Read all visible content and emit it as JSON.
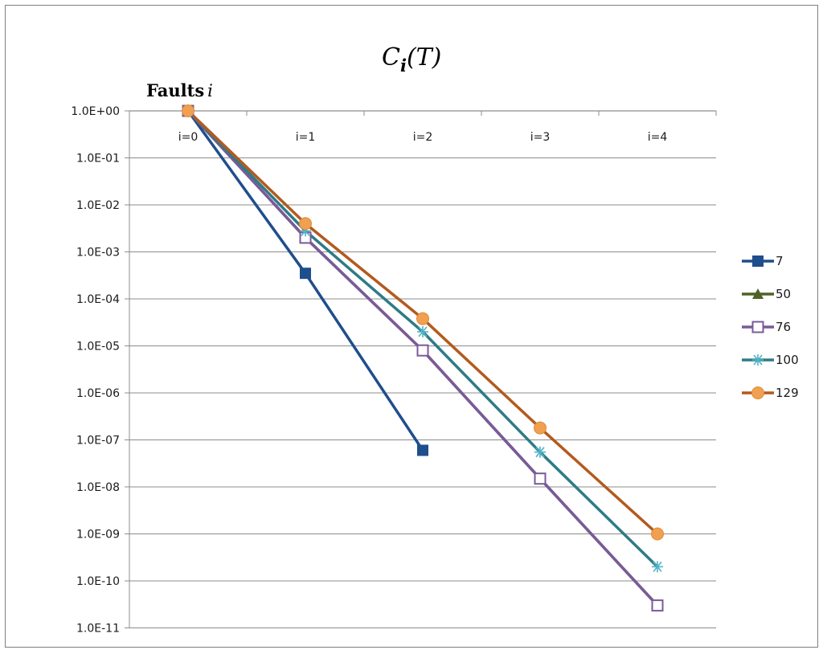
{
  "chart_data": {
    "type": "line",
    "title_main": "C",
    "title_sub": "i",
    "title_paren": "(T)",
    "axis_label_word": "Faults",
    "axis_label_var": "i",
    "y_scale": "log",
    "y_tick_labels": [
      "1.0E+00",
      "1.0E-01",
      "1.0E-02",
      "1.0E-03",
      "1.0E-04",
      "1.0E-05",
      "1.0E-06",
      "1.0E-07",
      "1.0E-08",
      "1.0E-09",
      "1.0E-10",
      "1.0E-11"
    ],
    "ylim": [
      1e-11,
      1
    ],
    "categories": [
      "i=0",
      "i=1",
      "i=2",
      "i=3",
      "i=4"
    ],
    "x_axis_position": "top",
    "grid": "horizontal",
    "legend_position": "right",
    "series": [
      {
        "name": "7",
        "color": "#1f4e8c",
        "marker": "square",
        "values": [
          1.0,
          0.00035,
          6e-08,
          null,
          null
        ]
      },
      {
        "name": "50",
        "color": "#4f6228",
        "marker": "triangle",
        "values": [
          1.0,
          0.002,
          8e-06,
          1.5e-08,
          3e-11
        ]
      },
      {
        "name": "76",
        "color": "#7a5a9a",
        "marker": "open-square",
        "values": [
          1.0,
          0.002,
          8e-06,
          1.5e-08,
          3e-11
        ]
      },
      {
        "name": "100",
        "color": "#2e7b86",
        "marker": "asterisk",
        "values": [
          1.0,
          0.0028,
          2e-05,
          5.5e-08,
          2e-10
        ]
      },
      {
        "name": "129",
        "color": "#b35a1f",
        "marker": "circle",
        "values": [
          1.0,
          0.004,
          3.8e-05,
          1.8e-07,
          1e-09
        ]
      }
    ]
  }
}
